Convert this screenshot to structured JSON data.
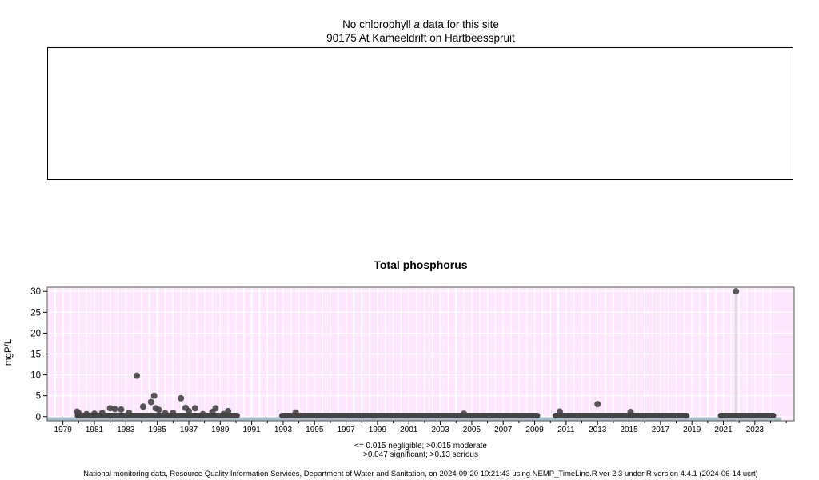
{
  "top_panel": {
    "title_prefix": "No chlorophyll ",
    "title_italic": "a",
    "title_suffix": " data for this site",
    "site": "90175 At Kameeldrift on Hartbeesspruit"
  },
  "chart_data": {
    "type": "scatter",
    "title": "Total phosphorus",
    "ylabel": "mgP/L",
    "xlabel": "",
    "xlim": [
      1978.0,
      2025.5
    ],
    "ylim": [
      -1,
      31
    ],
    "yticks": [
      0,
      5,
      10,
      15,
      20,
      25,
      30
    ],
    "xtick_labels": [
      "1979",
      "1981",
      "1983",
      "1985",
      "1987",
      "1989",
      "1991",
      "1993",
      "1995",
      "1997",
      "1999",
      "2001",
      "2003",
      "2005",
      "2007",
      "2009",
      "2011",
      "2013",
      "2015",
      "2017",
      "2019",
      "2021",
      "2023"
    ],
    "grid": true,
    "background_color": "#ffe6ff",
    "point_color": "#444444",
    "band_color": "#a9bccb",
    "sampling_periods": [
      [
        1979.9,
        1990.1
      ],
      [
        1992.9,
        2009.2
      ],
      [
        2010.3,
        2018.7
      ],
      [
        2020.8,
        2024.2
      ]
    ],
    "baseline_value": 0.25,
    "points": [
      {
        "x": 1979.9,
        "y": 1.2
      },
      {
        "x": 1980.0,
        "y": 0.8
      },
      {
        "x": 1980.5,
        "y": 0.6
      },
      {
        "x": 1981.0,
        "y": 0.7
      },
      {
        "x": 1981.5,
        "y": 0.9
      },
      {
        "x": 1982.0,
        "y": 2.0
      },
      {
        "x": 1982.3,
        "y": 1.8
      },
      {
        "x": 1982.7,
        "y": 1.7
      },
      {
        "x": 1983.2,
        "y": 0.9
      },
      {
        "x": 1983.7,
        "y": 9.8
      },
      {
        "x": 1984.1,
        "y": 2.4
      },
      {
        "x": 1984.6,
        "y": 3.5
      },
      {
        "x": 1984.8,
        "y": 5.0
      },
      {
        "x": 1984.9,
        "y": 2.0
      },
      {
        "x": 1985.1,
        "y": 1.6
      },
      {
        "x": 1985.5,
        "y": 0.8
      },
      {
        "x": 1986.0,
        "y": 0.9
      },
      {
        "x": 1986.5,
        "y": 4.4
      },
      {
        "x": 1986.8,
        "y": 2.1
      },
      {
        "x": 1987.0,
        "y": 1.3
      },
      {
        "x": 1987.4,
        "y": 2.0
      },
      {
        "x": 1987.9,
        "y": 0.6
      },
      {
        "x": 1988.5,
        "y": 1.1
      },
      {
        "x": 1988.7,
        "y": 2.0
      },
      {
        "x": 1989.2,
        "y": 0.6
      },
      {
        "x": 1989.5,
        "y": 1.3
      },
      {
        "x": 1993.8,
        "y": 1.0
      },
      {
        "x": 2004.5,
        "y": 0.7
      },
      {
        "x": 2010.6,
        "y": 1.2
      },
      {
        "x": 2013.0,
        "y": 3.0
      },
      {
        "x": 2015.1,
        "y": 1.1
      },
      {
        "x": 2021.8,
        "y": 30.0
      }
    ]
  },
  "legend_note": {
    "line1": "<= 0.015 negligible; >0.015 moderate",
    "line2": ">0.047 significant; >0.13 serious"
  },
  "footer": "National monitoring data, Resource Quality Information Services, Department of Water and Sanitation, on 2024-09-20 10:21:43 using NEMP_TimeLine.R ver 2.3 under R version 4.4.1 (2024-06-14 ucrt)"
}
